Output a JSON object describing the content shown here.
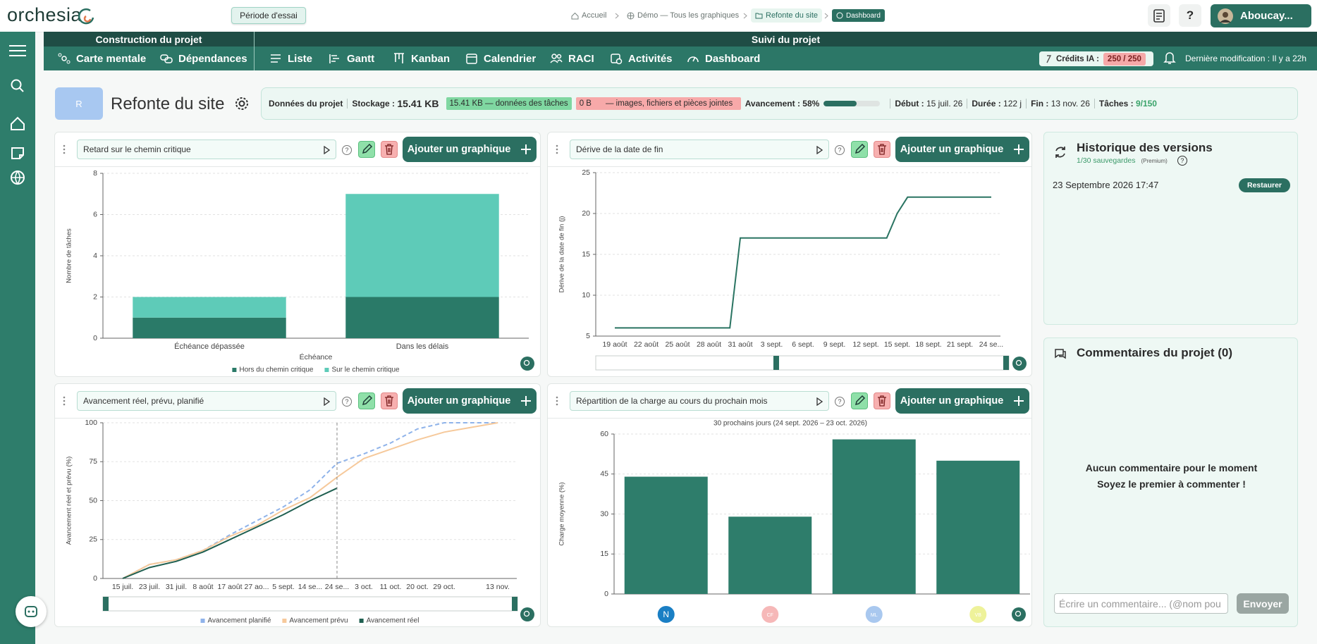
{
  "header": {
    "logo": "orchesia",
    "trial": "Période d'essai",
    "breadcrumb": [
      "Accueil",
      "Démo — Tous les graphiques",
      "Refonte du site",
      "Dashboard"
    ],
    "help": "?",
    "user": "Aboucay..."
  },
  "nav": {
    "groups": [
      "Construction du projet",
      "Suivi du projet"
    ],
    "tabs": [
      "Carte mentale",
      "Dépendances",
      "Liste",
      "Gantt",
      "Kanban",
      "Calendrier",
      "RACI",
      "Activités",
      "Dashboard"
    ],
    "credits_label": "Crédits IA :",
    "credits": "250 / 250",
    "modified_label": "Dernière modification :",
    "modified": "Il y a 22h"
  },
  "project": {
    "avatar": "R",
    "title": "Refonte du site",
    "info": {
      "title": "Données du projet",
      "storage_label": "Stockage :",
      "storage": "15.41 KB",
      "tasks_data": "15.41 KB — données des tâches",
      "files_size": "0 B",
      "files_label": "— images, fichiers et pièces jointes",
      "progress_label": "Avancement :",
      "progress": {
        "value": 58,
        "label": "58%"
      },
      "start_label": "Début :",
      "start": "15 juil. 26",
      "duration_label": "Durée :",
      "duration": "122 j",
      "end_label": "Fin :",
      "end": "13 nov. 26",
      "tasks_label": "Tâches :",
      "tasks": "9/150"
    }
  },
  "panel_button": "Ajouter un graphique",
  "history": {
    "title": "Historique des versions",
    "saves": "1/30 sauvegardes",
    "plan": "(Premium)",
    "versions": [
      {
        "date": "23 Septembre 2026 17:47",
        "action": "Restaurer"
      }
    ]
  },
  "comments": {
    "title": "Commentaires du projet (0)",
    "empty": [
      "Aucun commentaire pour le moment",
      "Soyez le premier à commenter !"
    ],
    "placeholder": "Écrire un commentaire... (@nom pou",
    "send": "Envoyer"
  },
  "chart_data": [
    {
      "type": "bar",
      "title": "Retard sur le chemin critique",
      "xlabel": "Échéance",
      "ylabel": "Nombre de tâches",
      "categories": [
        "Échéance dépassée",
        "Dans les délais"
      ],
      "series": [
        {
          "name": "Hors du chemin critique",
          "color": "#2a7a68",
          "values": [
            1,
            2
          ]
        },
        {
          "name": "Sur le chemin critique",
          "color": "#5ecbb8",
          "values": [
            1,
            5
          ]
        }
      ],
      "ylim": [
        0,
        8
      ],
      "yticks": [
        0,
        2,
        4,
        6,
        8
      ],
      "grid": true,
      "legend": "bottom"
    },
    {
      "type": "line",
      "title": "Dérive de la date de fin",
      "ylabel": "Dérive de la date de fin (j)",
      "categories": [
        "19 août",
        null,
        null,
        "22 août",
        null,
        null,
        "25 août",
        null,
        null,
        "28 août",
        null,
        null,
        "31 août",
        null,
        null,
        "3 sept.",
        null,
        null,
        "6 sept.",
        null,
        null,
        "9 sept.",
        null,
        null,
        "12 sept.",
        null,
        null,
        "15 sept.",
        null,
        null,
        "18 sept.",
        null,
        null,
        "21 sept.",
        null,
        null,
        "24 se..."
      ],
      "values": [
        6,
        6,
        6,
        6,
        6,
        6,
        6,
        6,
        6,
        6,
        6,
        6,
        17,
        17,
        17,
        17,
        17,
        17,
        17,
        17,
        17,
        17,
        17,
        17,
        17,
        17,
        17,
        20,
        22,
        22,
        22,
        22,
        22,
        22,
        22,
        22,
        22
      ],
      "color": "#2a7462",
      "ylim": [
        5,
        25
      ],
      "yticks": [
        5,
        10,
        15,
        20,
        25
      ],
      "grid": true
    },
    {
      "type": "line",
      "title": "Avancement réel, prévu, planifié",
      "ylabel": "Avancement réel et prévu (%)",
      "categories": [
        "15 juil.",
        "23 juil.",
        "31 juil.",
        "8 août",
        "17 août",
        "27 ao...",
        "5 sept.",
        "14 se...",
        "24 se...",
        "3 oct.",
        "11 oct.",
        "20 oct.",
        "29 oct.",
        null,
        "13 nov."
      ],
      "series": [
        {
          "name": "Avancement planifié",
          "color": "#8fb3ea",
          "dashed": true,
          "values": [
            0,
            9,
            12,
            18,
            28,
            37,
            46,
            57,
            74,
            80,
            87,
            96,
            100,
            100,
            100
          ]
        },
        {
          "name": "Avancement prévu",
          "color": "#f6c99b",
          "values": [
            0,
            9,
            12,
            18,
            27,
            34,
            44,
            52,
            65,
            77,
            83,
            89,
            94,
            97,
            100
          ]
        },
        {
          "name": "Avancement réel",
          "color": "#1f5f50",
          "values": [
            0,
            7,
            11,
            17,
            25,
            33,
            41,
            50,
            58,
            null,
            null,
            null,
            null,
            null,
            null
          ]
        }
      ],
      "ylim": [
        0,
        100
      ],
      "yticks": [
        0,
        25,
        50,
        75,
        100
      ],
      "grid": true,
      "legend": "bottom"
    },
    {
      "type": "bar",
      "title": "Répartition de la charge au cours du prochain mois",
      "subtitle": "30 prochains jours (24 sept. 2026 – 23 oct. 2026)",
      "ylabel": "Charge moyenne (%)",
      "categories": [
        "N",
        "CF",
        "ML",
        "VB"
      ],
      "category_colors": [
        "#1a7fc4",
        "#f6b8b8",
        "#a9c8ef",
        "#eef29a"
      ],
      "values": [
        44,
        29,
        58,
        50
      ],
      "color": "#2e7d6b",
      "ylim": [
        0,
        60
      ],
      "yticks": [
        0,
        15,
        30,
        45,
        60
      ],
      "grid": true
    }
  ]
}
